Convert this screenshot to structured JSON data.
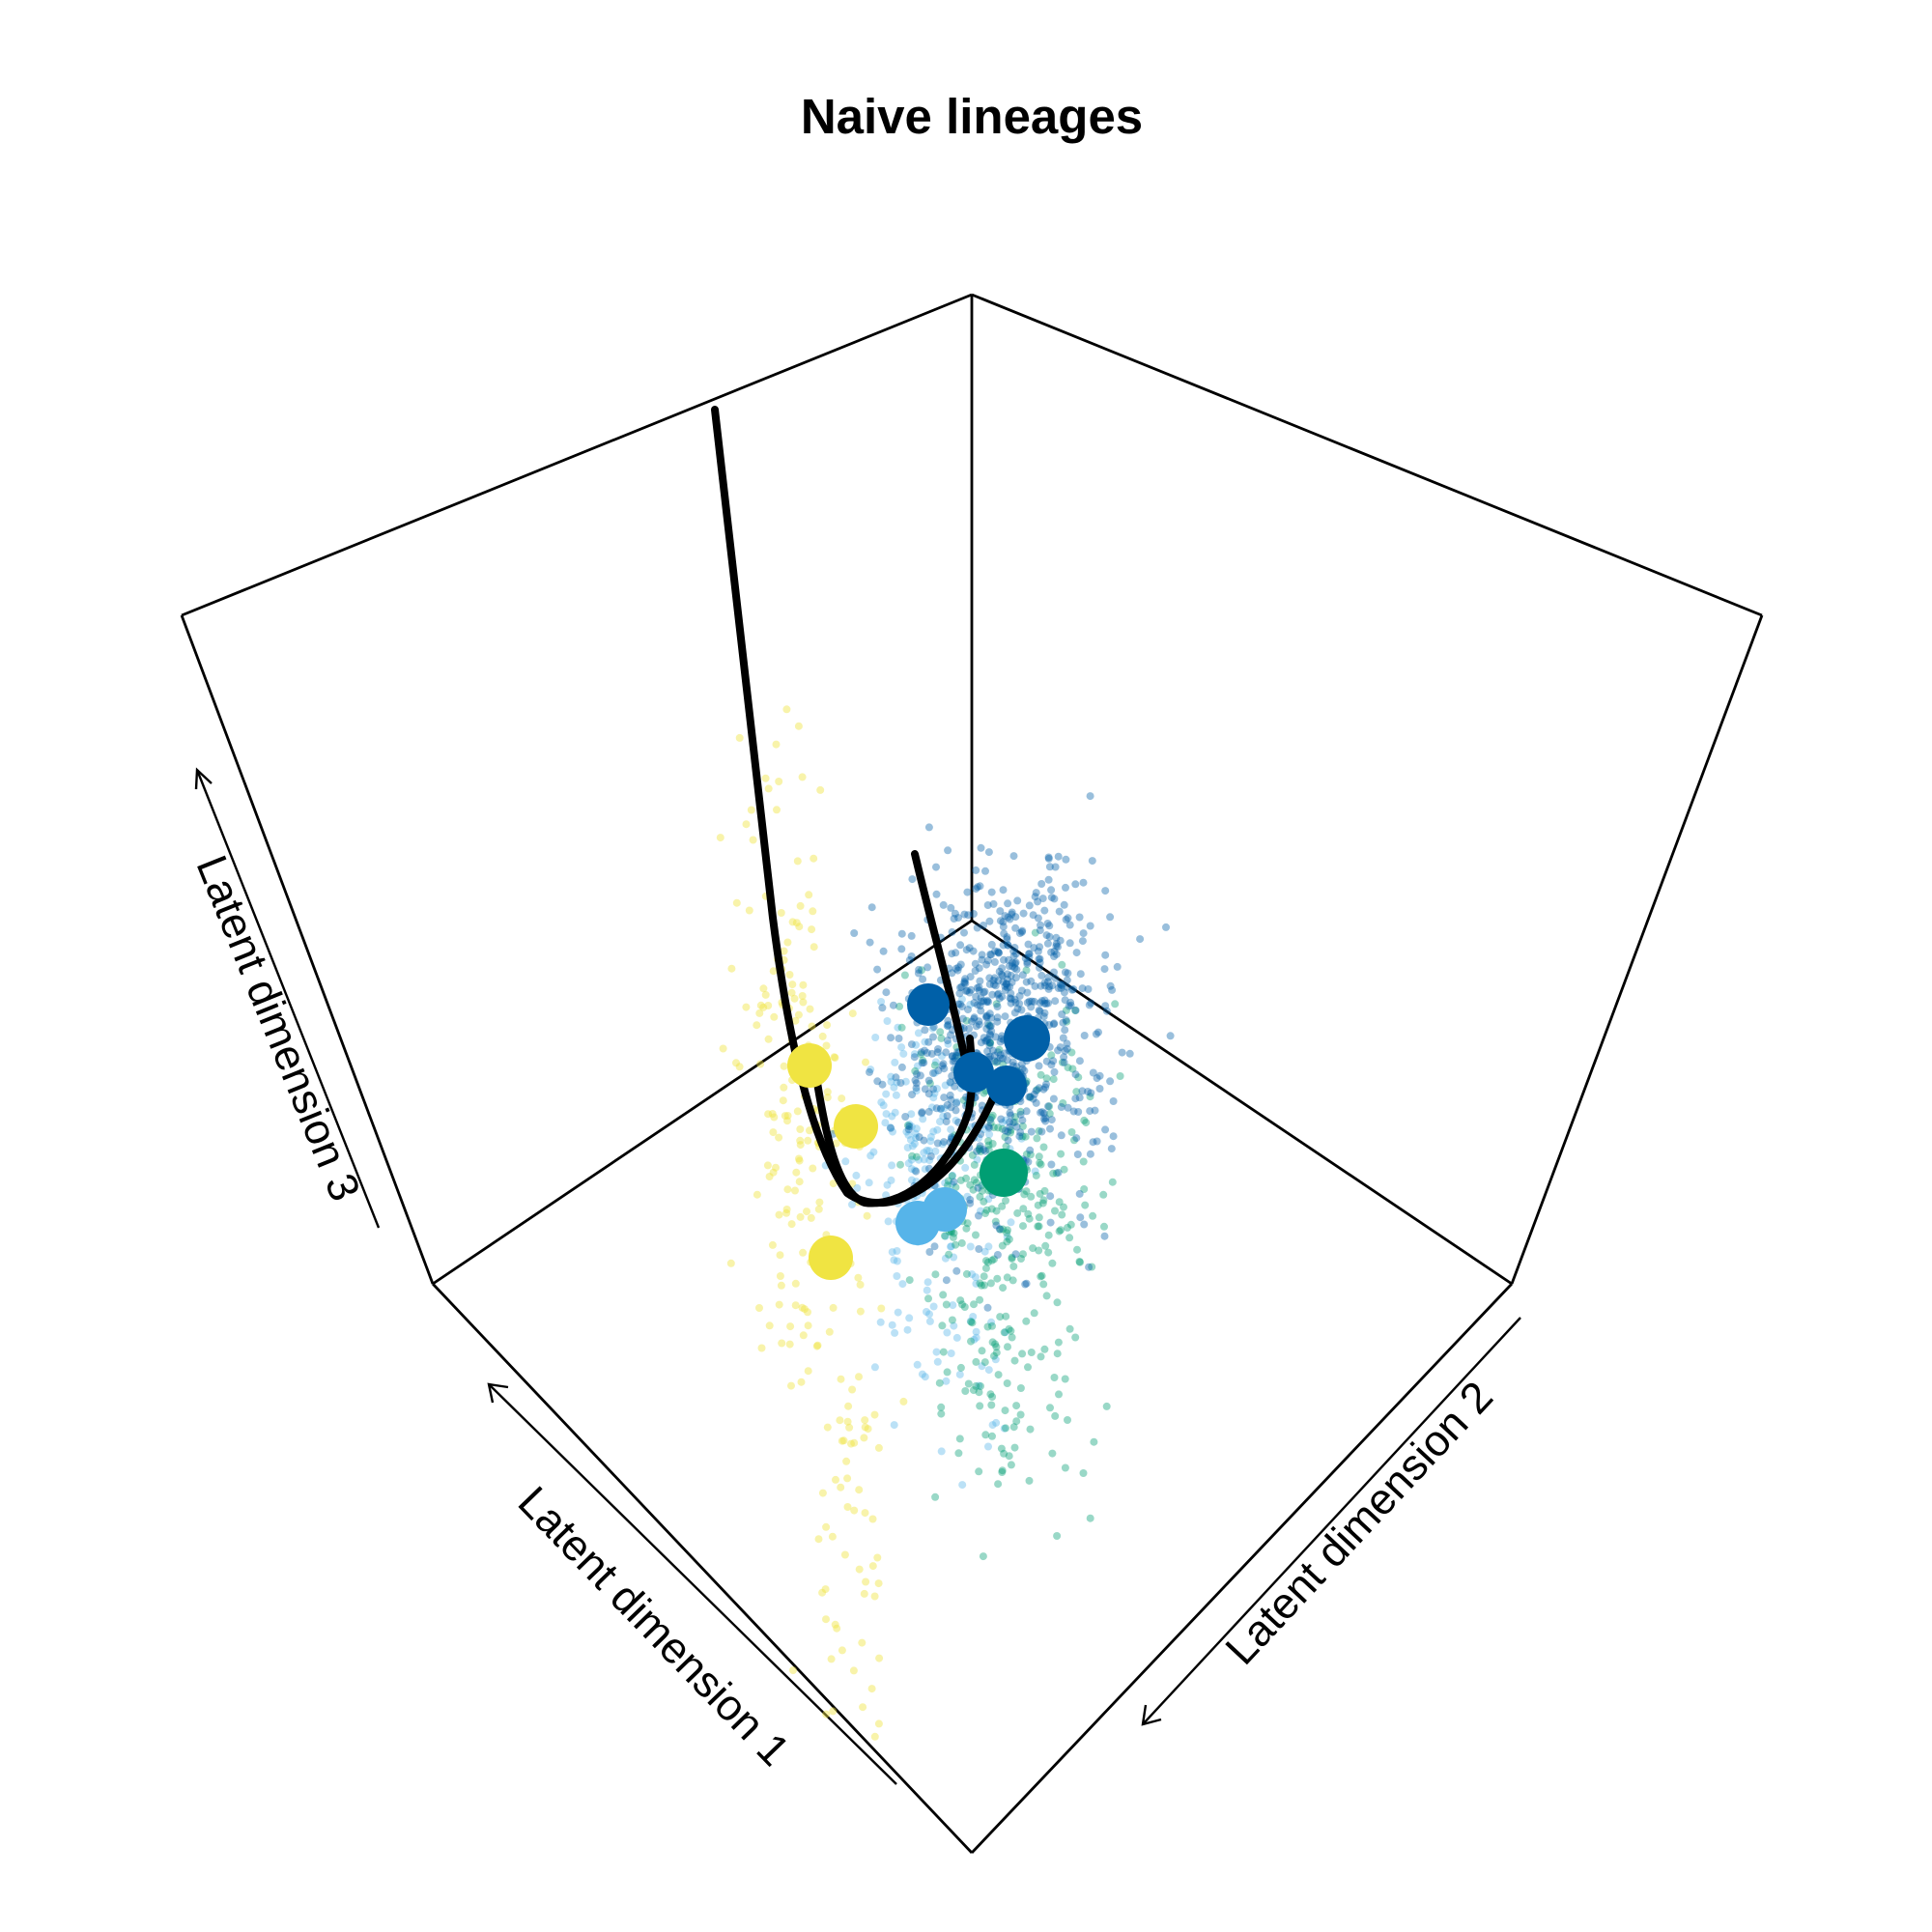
{
  "chart_data": {
    "type": "scatter",
    "projection": "3d-perspective-box",
    "title": "Naive lineages",
    "axes": {
      "x": "Latent dimension 1",
      "y": "Latent dimension 2",
      "z": "Latent dimension 3"
    },
    "grid": false,
    "legend": "none",
    "series": [
      {
        "color": "#f0e442"
      },
      {
        "color": "#56b4e9"
      },
      {
        "color": "#009e73"
      },
      {
        "color": "#0060a8"
      }
    ],
    "cluster_centers": [
      {
        "color": "#f0e442"
      },
      {
        "color": "#f0e442"
      },
      {
        "color": "#f0e442"
      },
      {
        "color": "#56b4e9"
      },
      {
        "color": "#56b4e9"
      },
      {
        "color": "#009e73"
      },
      {
        "color": "#0060a8"
      },
      {
        "color": "#0060a8"
      },
      {
        "color": "#0060a8"
      },
      {
        "color": "#0060a8"
      }
    ],
    "lineage_curves": 3
  }
}
